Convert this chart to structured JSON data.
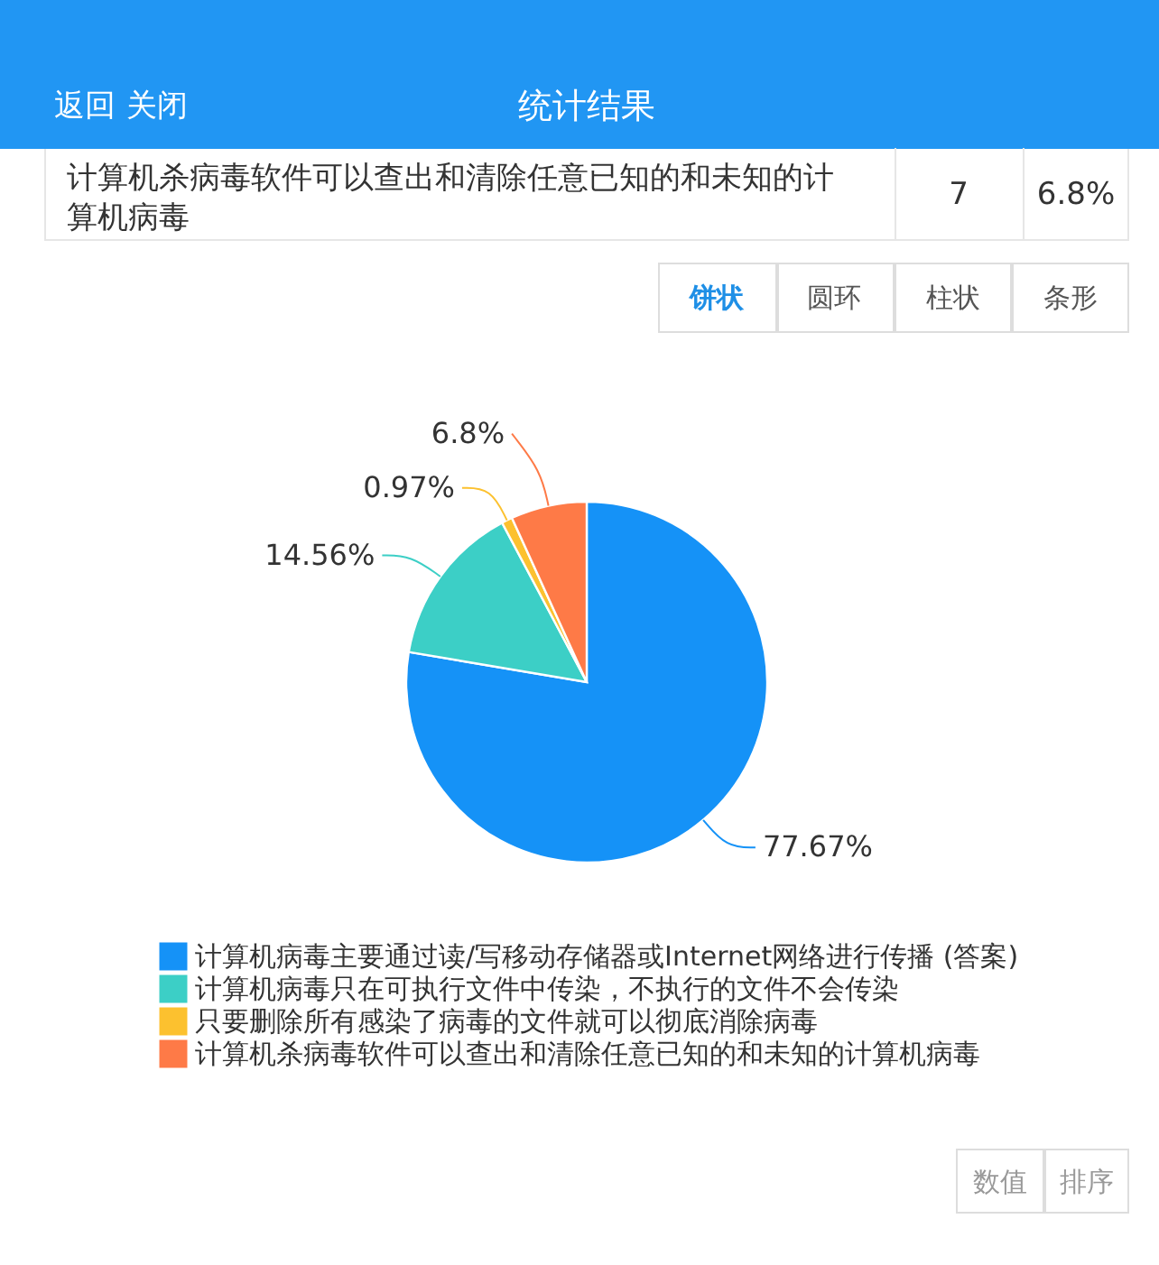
{
  "chart_data": {
    "type": "pie",
    "title": "统计结果",
    "categories": [
      "计算机病毒主要通过读/写移动存储器或Internet网络进行传播 (答案)",
      "计算机病毒只在可执行文件中传染，不执行的文件不会传染",
      "只要删除所有感染了病毒的文件就可以彻底消除病毒",
      "计算机杀病毒软件可以查出和清除任意已知的和未知的计算机病毒"
    ],
    "values": [
      77.67,
      14.56,
      0.97,
      6.8
    ],
    "colors": [
      "#1592f7",
      "#3ccfc6",
      "#fcc12f",
      "#fe7a47"
    ],
    "value_labels": [
      "77.67%",
      "14.56%",
      "0.97%",
      "6.8%"
    ],
    "legend": "bottom",
    "annotations": [
      "返回",
      "关闭",
      "计算机杀病毒软件可以查出和清除任意已知的和未知的计算机病毒",
      "7",
      "6.8%",
      "饼状",
      "圆环",
      "柱状",
      "条形",
      "数值",
      "排序"
    ]
  }
}
